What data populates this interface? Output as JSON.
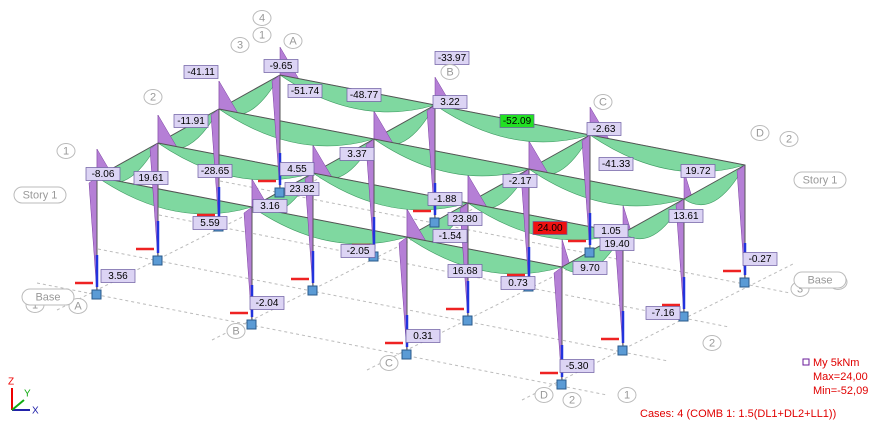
{
  "labels": [
    {
      "text": "-41.11"
    },
    {
      "text": "-9.65"
    },
    {
      "text": "-33.97"
    },
    {
      "text": "-51.74"
    },
    {
      "text": "-48.77"
    },
    {
      "text": "3.22"
    },
    {
      "text": "-11.91"
    },
    {
      "text": "-52.09",
      "color": "#22e022"
    },
    {
      "text": "-2.63"
    },
    {
      "text": "3.37"
    },
    {
      "text": "-8.06"
    },
    {
      "text": "19.61"
    },
    {
      "text": "-28.65"
    },
    {
      "text": "4.55"
    },
    {
      "text": "23.82"
    },
    {
      "text": "-41.33"
    },
    {
      "text": "19.72"
    },
    {
      "text": "-1.88"
    },
    {
      "text": "-2.17"
    },
    {
      "text": "3.16"
    },
    {
      "text": "5.59"
    },
    {
      "text": "23.80"
    },
    {
      "text": "24.00",
      "color": "#ee1111"
    },
    {
      "text": "1.05"
    },
    {
      "text": "19.40"
    },
    {
      "text": "13.61"
    },
    {
      "text": "-2.05"
    },
    {
      "text": "-1.54"
    },
    {
      "text": "-0.27"
    },
    {
      "text": "3.56"
    },
    {
      "text": "16.68"
    },
    {
      "text": "0.73"
    },
    {
      "text": "9.70"
    },
    {
      "text": "-2.04"
    },
    {
      "text": "-7.16"
    },
    {
      "text": "0.31"
    },
    {
      "text": "-5.30"
    }
  ],
  "grid_bubbles": [
    "4",
    "1",
    "3",
    "A",
    "B",
    "2",
    "1",
    "C",
    "D",
    "2",
    "A",
    "1",
    "B",
    "C",
    "D",
    "2",
    "1",
    "2",
    "3",
    "4"
  ],
  "level_labels": [
    "Story 1",
    "Story 1",
    "Base",
    "Base"
  ],
  "legend": {
    "title": "My  5kNm",
    "max": "Max=24,00",
    "min": "Min=-52,09"
  },
  "cases": "Cases: 4 (COMB 1: 1.5(DL1+DL2+LL1))",
  "axes": [
    "Z",
    "Y",
    "X"
  ]
}
